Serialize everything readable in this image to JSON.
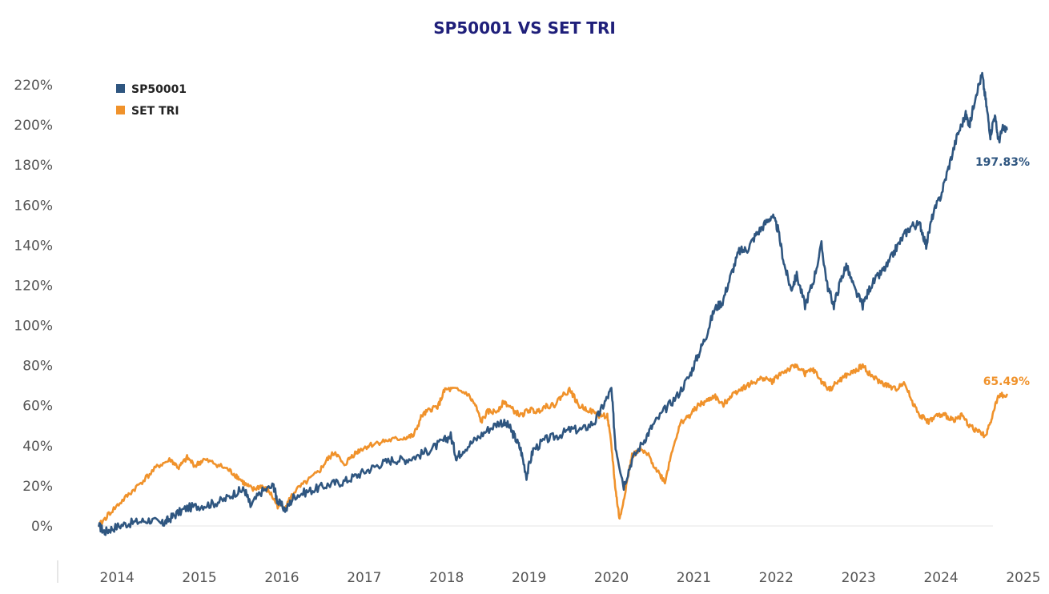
{
  "chart_data": {
    "type": "line",
    "title": "SP50001 VS SET TRI",
    "xlabel": "",
    "ylabel": "",
    "x_range": [
      2013.6,
      2025.0
    ],
    "ylim": [
      -8,
      230
    ],
    "y_ticks": [
      0,
      20,
      40,
      60,
      80,
      100,
      120,
      140,
      160,
      180,
      200,
      220
    ],
    "y_tick_labels": [
      "0%",
      "20%",
      "40%",
      "60%",
      "80%",
      "100%",
      "120%",
      "140%",
      "160%",
      "180%",
      "200%",
      "220%"
    ],
    "x_ticks": [
      2014,
      2015,
      2016,
      2017,
      2018,
      2019,
      2020,
      2021,
      2022,
      2023,
      2024,
      2025
    ],
    "x_tick_labels": [
      "2014",
      "2015",
      "2016",
      "2017",
      "2018",
      "2019",
      "2020",
      "2021",
      "2022",
      "2023",
      "2024",
      "2025"
    ],
    "grid": false,
    "legend_position": "top-left",
    "colors": {
      "title": "#1f1f7a",
      "sp": "#2f5680",
      "set": "#f0922b",
      "zero_line": "#e6e6e6",
      "axis": "#cccccc"
    },
    "series": [
      {
        "name": "SP50001",
        "color": "#2f5680",
        "end_label": "197.83%",
        "points": [
          [
            2013.78,
            0
          ],
          [
            2013.85,
            -3
          ],
          [
            2013.95,
            -1
          ],
          [
            2014.1,
            1
          ],
          [
            2014.25,
            2
          ],
          [
            2014.4,
            3
          ],
          [
            2014.55,
            1
          ],
          [
            2014.62,
            3
          ],
          [
            2014.72,
            6
          ],
          [
            2014.85,
            9
          ],
          [
            2015.0,
            10
          ],
          [
            2015.15,
            11
          ],
          [
            2015.3,
            13
          ],
          [
            2015.45,
            17
          ],
          [
            2015.55,
            18
          ],
          [
            2015.62,
            10
          ],
          [
            2015.75,
            17
          ],
          [
            2015.9,
            20
          ],
          [
            2015.95,
            12
          ],
          [
            2016.05,
            8
          ],
          [
            2016.15,
            15
          ],
          [
            2016.3,
            17
          ],
          [
            2016.45,
            19
          ],
          [
            2016.6,
            21
          ],
          [
            2016.75,
            22
          ],
          [
            2016.9,
            25
          ],
          [
            2017.05,
            28
          ],
          [
            2017.2,
            31
          ],
          [
            2017.35,
            33
          ],
          [
            2017.5,
            33
          ],
          [
            2017.65,
            35
          ],
          [
            2017.8,
            38
          ],
          [
            2017.95,
            42
          ],
          [
            2018.05,
            45
          ],
          [
            2018.12,
            34
          ],
          [
            2018.2,
            38
          ],
          [
            2018.35,
            43
          ],
          [
            2018.5,
            48
          ],
          [
            2018.65,
            52
          ],
          [
            2018.75,
            50
          ],
          [
            2018.82,
            45
          ],
          [
            2018.9,
            38
          ],
          [
            2018.97,
            25
          ],
          [
            2019.05,
            38
          ],
          [
            2019.2,
            43
          ],
          [
            2019.35,
            45
          ],
          [
            2019.5,
            48
          ],
          [
            2019.65,
            48
          ],
          [
            2019.8,
            52
          ],
          [
            2019.9,
            60
          ],
          [
            2020.0,
            68
          ],
          [
            2020.05,
            40
          ],
          [
            2020.15,
            20
          ],
          [
            2020.25,
            33
          ],
          [
            2020.4,
            43
          ],
          [
            2020.5,
            50
          ],
          [
            2020.65,
            58
          ],
          [
            2020.8,
            65
          ],
          [
            2020.95,
            75
          ],
          [
            2021.05,
            85
          ],
          [
            2021.15,
            95
          ],
          [
            2021.25,
            108
          ],
          [
            2021.35,
            112
          ],
          [
            2021.45,
            125
          ],
          [
            2021.55,
            137
          ],
          [
            2021.65,
            138
          ],
          [
            2021.75,
            145
          ],
          [
            2021.85,
            150
          ],
          [
            2021.95,
            155
          ],
          [
            2022.02,
            148
          ],
          [
            2022.1,
            130
          ],
          [
            2022.18,
            118
          ],
          [
            2022.25,
            125
          ],
          [
            2022.35,
            110
          ],
          [
            2022.45,
            122
          ],
          [
            2022.55,
            140
          ],
          [
            2022.62,
            120
          ],
          [
            2022.7,
            110
          ],
          [
            2022.78,
            122
          ],
          [
            2022.85,
            130
          ],
          [
            2022.95,
            118
          ],
          [
            2023.05,
            110
          ],
          [
            2023.15,
            120
          ],
          [
            2023.25,
            125
          ],
          [
            2023.35,
            130
          ],
          [
            2023.45,
            138
          ],
          [
            2023.55,
            145
          ],
          [
            2023.65,
            150
          ],
          [
            2023.75,
            150
          ],
          [
            2023.82,
            140
          ],
          [
            2023.9,
            155
          ],
          [
            2024.0,
            165
          ],
          [
            2024.1,
            180
          ],
          [
            2024.2,
            195
          ],
          [
            2024.3,
            205
          ],
          [
            2024.35,
            200
          ],
          [
            2024.42,
            215
          ],
          [
            2024.5,
            225
          ],
          [
            2024.55,
            210
          ],
          [
            2024.6,
            195
          ],
          [
            2024.65,
            205
          ],
          [
            2024.7,
            192
          ],
          [
            2024.75,
            198
          ],
          [
            2024.8,
            197.83
          ]
        ]
      },
      {
        "name": "SET TRI",
        "color": "#f0922b",
        "end_label": "65.49%",
        "points": [
          [
            2013.78,
            0
          ],
          [
            2013.9,
            6
          ],
          [
            2014.05,
            12
          ],
          [
            2014.2,
            18
          ],
          [
            2014.35,
            24
          ],
          [
            2014.5,
            30
          ],
          [
            2014.65,
            33
          ],
          [
            2014.75,
            29
          ],
          [
            2014.85,
            34
          ],
          [
            2014.95,
            30
          ],
          [
            2015.05,
            33
          ],
          [
            2015.2,
            31
          ],
          [
            2015.35,
            28
          ],
          [
            2015.45,
            25
          ],
          [
            2015.55,
            21
          ],
          [
            2015.65,
            18
          ],
          [
            2015.75,
            20
          ],
          [
            2015.85,
            17
          ],
          [
            2015.95,
            10
          ],
          [
            2016.05,
            10
          ],
          [
            2016.15,
            17
          ],
          [
            2016.3,
            22
          ],
          [
            2016.45,
            27
          ],
          [
            2016.55,
            33
          ],
          [
            2016.65,
            37
          ],
          [
            2016.75,
            30
          ],
          [
            2016.85,
            35
          ],
          [
            2016.95,
            38
          ],
          [
            2017.05,
            40
          ],
          [
            2017.2,
            42
          ],
          [
            2017.35,
            43
          ],
          [
            2017.5,
            44
          ],
          [
            2017.6,
            45
          ],
          [
            2017.7,
            55
          ],
          [
            2017.8,
            58
          ],
          [
            2017.9,
            60
          ],
          [
            2017.98,
            68
          ],
          [
            2018.1,
            68
          ],
          [
            2018.25,
            66
          ],
          [
            2018.35,
            60
          ],
          [
            2018.42,
            52
          ],
          [
            2018.5,
            57
          ],
          [
            2018.6,
            57
          ],
          [
            2018.7,
            62
          ],
          [
            2018.8,
            58
          ],
          [
            2018.9,
            55
          ],
          [
            2019.0,
            58
          ],
          [
            2019.1,
            57
          ],
          [
            2019.2,
            60
          ],
          [
            2019.3,
            60
          ],
          [
            2019.4,
            65
          ],
          [
            2019.5,
            68
          ],
          [
            2019.6,
            60
          ],
          [
            2019.72,
            58
          ],
          [
            2019.85,
            55
          ],
          [
            2019.95,
            55
          ],
          [
            2020.0,
            40
          ],
          [
            2020.05,
            18
          ],
          [
            2020.1,
            3
          ],
          [
            2020.18,
            20
          ],
          [
            2020.25,
            35
          ],
          [
            2020.35,
            38
          ],
          [
            2020.45,
            35
          ],
          [
            2020.55,
            28
          ],
          [
            2020.65,
            22
          ],
          [
            2020.75,
            40
          ],
          [
            2020.85,
            52
          ],
          [
            2020.95,
            55
          ],
          [
            2021.05,
            60
          ],
          [
            2021.15,
            62
          ],
          [
            2021.25,
            65
          ],
          [
            2021.35,
            60
          ],
          [
            2021.45,
            65
          ],
          [
            2021.55,
            68
          ],
          [
            2021.65,
            70
          ],
          [
            2021.75,
            72
          ],
          [
            2021.85,
            74
          ],
          [
            2021.95,
            72
          ],
          [
            2022.05,
            76
          ],
          [
            2022.15,
            78
          ],
          [
            2022.25,
            80
          ],
          [
            2022.35,
            76
          ],
          [
            2022.45,
            78
          ],
          [
            2022.55,
            72
          ],
          [
            2022.65,
            68
          ],
          [
            2022.75,
            72
          ],
          [
            2022.85,
            75
          ],
          [
            2022.95,
            77
          ],
          [
            2023.05,
            80
          ],
          [
            2023.15,
            75
          ],
          [
            2023.25,
            72
          ],
          [
            2023.35,
            70
          ],
          [
            2023.45,
            68
          ],
          [
            2023.55,
            72
          ],
          [
            2023.65,
            62
          ],
          [
            2023.75,
            55
          ],
          [
            2023.85,
            52
          ],
          [
            2023.95,
            55
          ],
          [
            2024.05,
            55
          ],
          [
            2024.15,
            53
          ],
          [
            2024.25,
            55
          ],
          [
            2024.35,
            50
          ],
          [
            2024.45,
            47
          ],
          [
            2024.55,
            45
          ],
          [
            2024.62,
            55
          ],
          [
            2024.7,
            65
          ],
          [
            2024.8,
            65.49
          ]
        ]
      }
    ]
  }
}
